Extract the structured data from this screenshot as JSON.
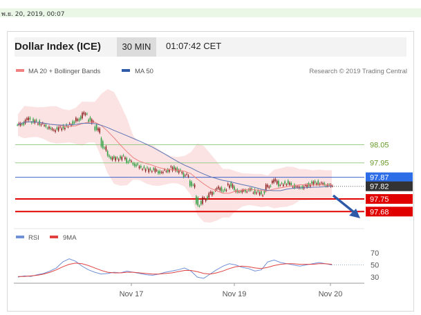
{
  "timestamp": "พ.ย. 20, 2019, 00:07",
  "header": {
    "title": "Dollar Index (ICE)",
    "interval": "30 MIN",
    "clock": "01:07:42 CET"
  },
  "legend_main": {
    "bollinger": "MA 20 + Bollinger Bands",
    "ma50": "MA 50",
    "credit": "Research © 2019 Trading Central"
  },
  "legend_rsi": {
    "rsi": "RSI",
    "ma9": "9MA"
  },
  "colors": {
    "ma20": "#f08080",
    "bands": "#fbd7d7",
    "ma50": "#5a74b4",
    "rsi": "#6f8fd8",
    "rsi_ma": "#e04040",
    "up": "#2ea043",
    "down": "#8a1c1c",
    "support": "#e00000",
    "resistance": "#9acb8a",
    "pivot": "#3f63c8"
  },
  "chart_data": [
    {
      "type": "candlestick",
      "x_ticks": [
        "Nov 17",
        "Nov 19",
        "Nov 20"
      ],
      "levels": [
        {
          "value": "98.05",
          "kind": "resistance"
        },
        {
          "value": "97.95",
          "kind": "resistance"
        },
        {
          "value": "97.87",
          "kind": "pivot"
        },
        {
          "value": "97.82",
          "kind": "last"
        },
        {
          "value": "97.75",
          "kind": "support"
        },
        {
          "value": "97.68",
          "kind": "support"
        }
      ],
      "close": [
        98.16,
        98.19,
        98.18,
        98.17,
        98.15,
        98.13,
        98.14,
        98.15,
        98.17,
        98.19,
        98.22,
        98.18,
        98.14,
        98.04,
        97.98,
        97.97,
        97.98,
        97.96,
        97.94,
        97.92,
        97.91,
        97.91,
        97.9,
        97.91,
        97.92,
        97.9,
        97.88,
        97.83,
        97.72,
        97.75,
        97.78,
        97.81,
        97.8,
        97.83,
        97.79,
        97.79,
        97.8,
        97.79,
        97.78,
        97.82,
        97.85,
        97.83,
        97.84,
        97.82,
        97.81,
        97.82,
        97.84,
        97.84,
        97.83,
        97.82
      ],
      "ylim": [
        97.62,
        98.4
      ]
    },
    {
      "type": "line",
      "name": "RSI",
      "y_ticks": [
        "70",
        "50",
        "30"
      ],
      "ylim": [
        20,
        80
      ],
      "rsi": [
        30,
        32,
        31,
        34,
        36,
        40,
        45,
        55,
        60,
        56,
        48,
        42,
        38,
        35,
        36,
        38,
        37,
        40,
        38,
        36,
        34,
        33,
        35,
        38,
        40,
        42,
        45,
        40,
        30,
        28,
        35,
        42,
        48,
        52,
        50,
        46,
        44,
        40,
        42,
        55,
        58,
        54,
        52,
        50,
        48,
        50,
        52,
        54,
        52,
        50
      ],
      "ma9": [
        31,
        31,
        32,
        33,
        35,
        38,
        42,
        47,
        51,
        53,
        52,
        49,
        45,
        41,
        38,
        37,
        37,
        38,
        38,
        37,
        36,
        35,
        35,
        36,
        37,
        39,
        41,
        41,
        39,
        36,
        35,
        37,
        40,
        44,
        47,
        48,
        47,
        45,
        44,
        46,
        49,
        51,
        52,
        52,
        51,
        51,
        51,
        52,
        52,
        51
      ]
    }
  ]
}
